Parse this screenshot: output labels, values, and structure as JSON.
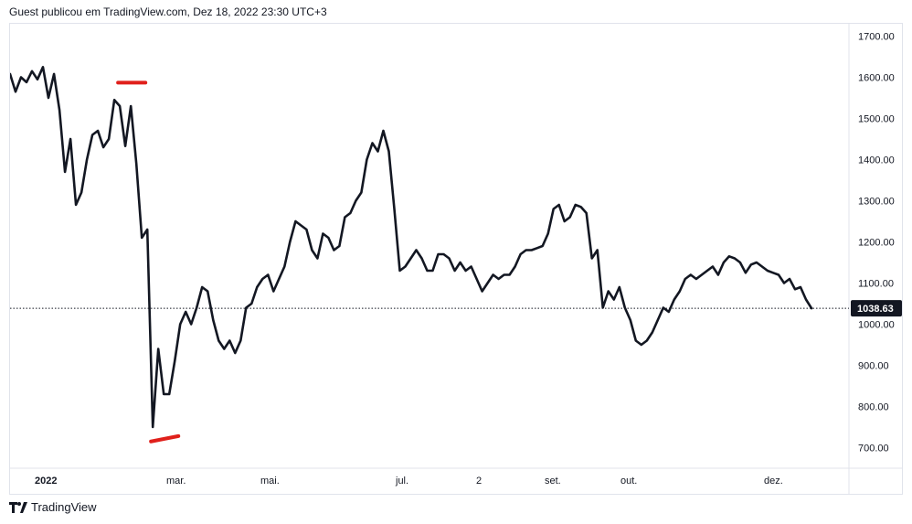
{
  "header": {
    "publisher_text": "Guest publicou em TradingView.com, Dez 18, 2022 23:30 UTC+3"
  },
  "footer": {
    "brand": "TradingView"
  },
  "colors": {
    "line": "#131722",
    "annotation": "#e0201b",
    "last_price_bg": "#131722",
    "grid": "#e0e3eb"
  },
  "chart_data": {
    "type": "line",
    "title": "",
    "xlabel": "",
    "ylabel": "",
    "ylim": [
      650,
      1730
    ],
    "y_ticks": [
      "1700.00",
      "1600.00",
      "1500.00",
      "1400.00",
      "1300.00",
      "1200.00",
      "1100.00",
      "1000.00",
      "900.00",
      "800.00",
      "700.00"
    ],
    "x_ticks": [
      "2022",
      "mar.",
      "mai.",
      "jul.",
      "2",
      "set.",
      "out.",
      "dez."
    ],
    "last_price": "1038.63",
    "series": [
      {
        "values": [
          1608,
          1565,
          1600,
          1588,
          1615,
          1595,
          1625,
          1550,
          1608,
          1520,
          1370,
          1450,
          1290,
          1320,
          1400,
          1460,
          1470,
          1430,
          1450,
          1545,
          1530,
          1433,
          1530,
          1390,
          1210,
          1230,
          750,
          940,
          830,
          830,
          910,
          1000,
          1030,
          1000,
          1040,
          1090,
          1080,
          1010,
          960,
          940,
          960,
          930,
          960,
          1040,
          1050,
          1090,
          1110,
          1120,
          1080,
          1110,
          1140,
          1200,
          1250,
          1240,
          1230,
          1180,
          1160,
          1220,
          1210,
          1180,
          1190,
          1260,
          1270,
          1300,
          1320,
          1400,
          1440,
          1420,
          1470,
          1420,
          1280,
          1130,
          1140,
          1160,
          1180,
          1160,
          1130,
          1130,
          1170,
          1170,
          1160,
          1130,
          1150,
          1130,
          1140,
          1110,
          1080,
          1100,
          1120,
          1110,
          1120,
          1120,
          1140,
          1170,
          1180,
          1180,
          1185,
          1190,
          1220,
          1280,
          1290,
          1250,
          1260,
          1290,
          1285,
          1270,
          1160,
          1180,
          1040,
          1080,
          1060,
          1090,
          1040,
          1010,
          960,
          950,
          960,
          980,
          1010,
          1040,
          1030,
          1060,
          1080,
          1110,
          1120,
          1110,
          1120,
          1130,
          1140,
          1120,
          1150,
          1165,
          1160,
          1150,
          1125,
          1145,
          1150,
          1140,
          1130,
          1125,
          1120,
          1100,
          1110,
          1085,
          1090,
          1060,
          1038.63
        ]
      }
    ],
    "annotations": [
      {
        "type": "mark",
        "x_index_start": 20,
        "x_index_end": 25,
        "y_start": 1587,
        "y_end": 1587
      },
      {
        "type": "mark",
        "x_index_start": 26,
        "x_index_end": 31,
        "y_start": 715,
        "y_end": 728
      }
    ]
  }
}
